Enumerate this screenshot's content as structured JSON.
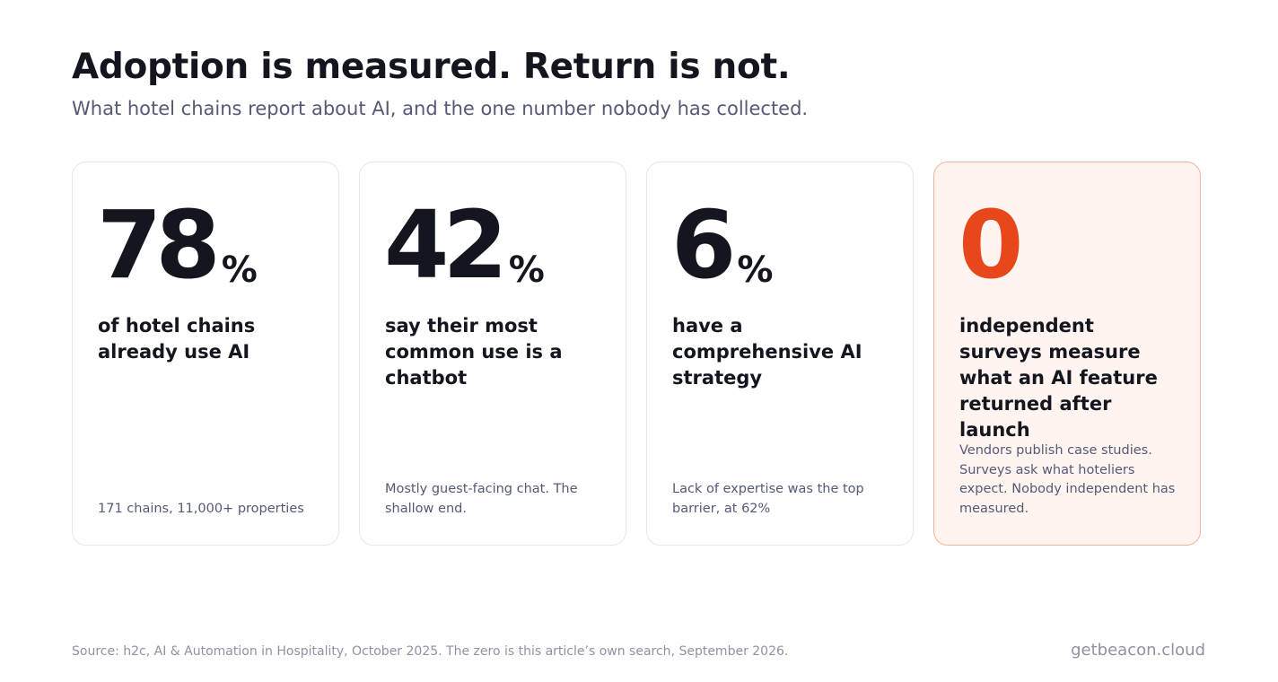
{
  "header": {
    "title": "Adoption is measured. Return is not.",
    "subtitle": "What hotel chains report about AI, and the one number nobody has collected."
  },
  "cards": [
    {
      "number": "78",
      "unit": "%",
      "label": "of hotel chains already use AI",
      "note": "171 chains, 11,000+ properties"
    },
    {
      "number": "42",
      "unit": "%",
      "label": "say their most common use is a chatbot",
      "note": "Mostly guest-facing chat. The shallow end."
    },
    {
      "number": "6",
      "unit": "%",
      "label": "have a comprehensive AI strategy",
      "note": "Lack of expertise was the top barrier, at 62%"
    },
    {
      "number": "0",
      "unit": "",
      "label": "independent surveys measure what an AI feature returned after launch",
      "note": "Vendors publish case studies. Surveys ask what hoteliers expect. Nobody independent has measured."
    }
  ],
  "footer": {
    "source": "Source: h2c, AI & Automation in Hospitality, October 2025. The zero is this article’s own search, September 2026.",
    "brand": "getbeacon.cloud"
  },
  "colors": {
    "accent": "#e8471b",
    "highlight_background": "#fff4f0",
    "highlight_border": "#f4b49c",
    "text_dark": "#14161f",
    "text_muted": "#545a75"
  }
}
